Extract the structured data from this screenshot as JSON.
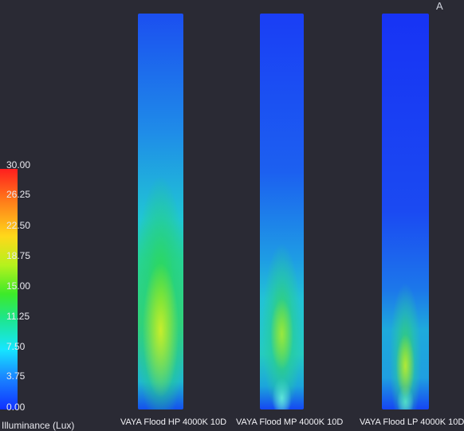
{
  "corner_mark": "A",
  "legend": {
    "title": "Illuminance (Lux)",
    "ticks": [
      "30.00",
      "26.25",
      "22.50",
      "18.75",
      "15.00",
      "11.25",
      "7.50",
      "3.75",
      "0.00"
    ],
    "min": 0,
    "max": 30,
    "color_stops": [
      "#ff1e1e",
      "#ff7a1a",
      "#ffd81a",
      "#b5f21d",
      "#3dea29",
      "#1ee68a",
      "#16e6ff",
      "#1a8bff",
      "#1030ff"
    ]
  },
  "panels": [
    {
      "label": "VAYA Flood HP 4000K 10D"
    },
    {
      "label": "VAYA Flood MP 4000K 10D"
    },
    {
      "label": "VAYA Flood  LP 4000K 10D"
    }
  ]
}
